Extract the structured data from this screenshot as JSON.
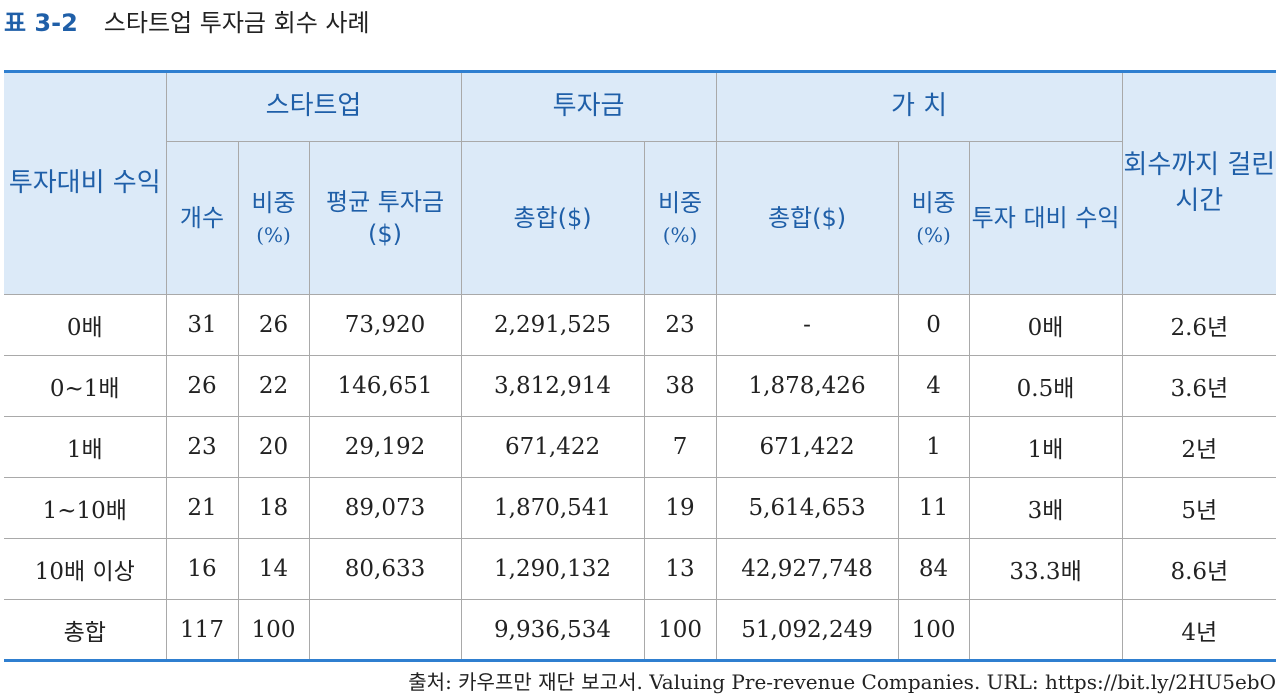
{
  "title": {
    "number": "표 3-2",
    "text": "스타트업 투자금 회수 사례"
  },
  "header": {
    "return_multiple": "투자대비 수익",
    "startup": "스타트업",
    "investment": "투자금",
    "value": "가 치",
    "time_to_exit": "회수까지 걸린 시간",
    "count": "개수",
    "share_label": "비중",
    "share_unit": "(%)",
    "avg_investment": "평균 투자금($)",
    "total": "총합($)",
    "value_return": "투자 대비 수익"
  },
  "rows": [
    {
      "multiple": "0배",
      "count": "31",
      "share": "26",
      "avg": "73,920",
      "inv_total": "2,291,525",
      "inv_share": "23",
      "val_total": "-",
      "val_share": "0",
      "val_return": "0배",
      "time": "2.6년"
    },
    {
      "multiple": "0~1배",
      "count": "26",
      "share": "22",
      "avg": "146,651",
      "inv_total": "3,812,914",
      "inv_share": "38",
      "val_total": "1,878,426",
      "val_share": "4",
      "val_return": "0.5배",
      "time": "3.6년"
    },
    {
      "multiple": "1배",
      "count": "23",
      "share": "20",
      "avg": "29,192",
      "inv_total": "671,422",
      "inv_share": "7",
      "val_total": "671,422",
      "val_share": "1",
      "val_return": "1배",
      "time": "2년"
    },
    {
      "multiple": "1~10배",
      "count": "21",
      "share": "18",
      "avg": "89,073",
      "inv_total": "1,870,541",
      "inv_share": "19",
      "val_total": "5,614,653",
      "val_share": "11",
      "val_return": "3배",
      "time": "5년"
    },
    {
      "multiple": "10배 이상",
      "count": "16",
      "share": "14",
      "avg": "80,633",
      "inv_total": "1,290,132",
      "inv_share": "13",
      "val_total": "42,927,748",
      "val_share": "84",
      "val_return": "33.3배",
      "time": "8.6년"
    },
    {
      "multiple": "총합",
      "count": "117",
      "share": "100",
      "avg": "",
      "inv_total": "9,936,534",
      "inv_share": "100",
      "val_total": "51,092,249",
      "val_share": "100",
      "val_return": "",
      "time": "4년"
    }
  ],
  "source": "출처: 카우프만 재단 보고서. Valuing Pre-revenue Companies. URL: https://bit.ly/2HU5ebO"
}
